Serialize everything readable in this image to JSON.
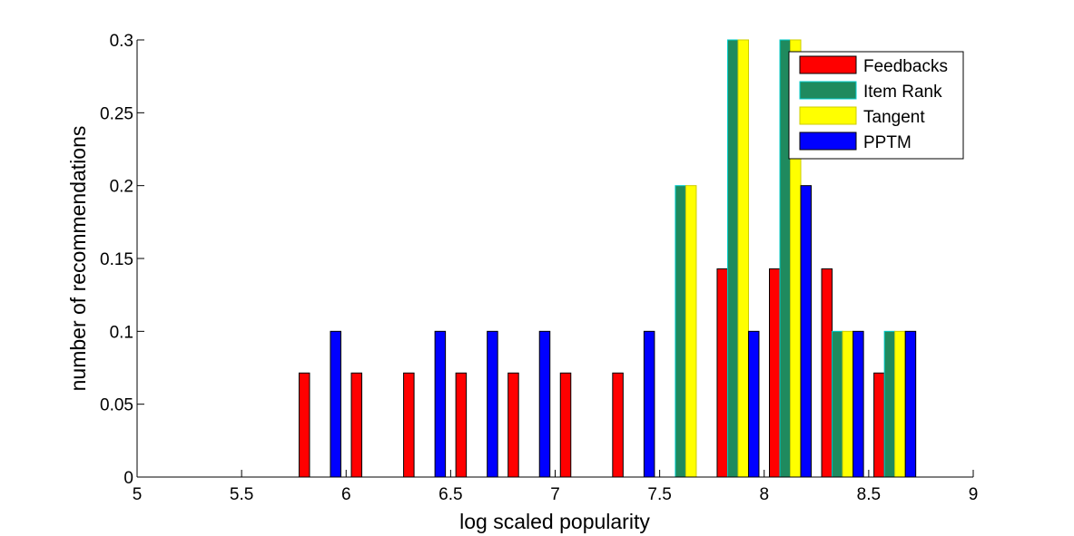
{
  "chart_data": {
    "type": "bar",
    "xlabel": "log scaled popularity",
    "ylabel": "number of recommendations",
    "xlim": [
      5,
      9
    ],
    "ylim": [
      0,
      0.3
    ],
    "x_ticks": [
      "5",
      "5.5",
      "6",
      "6.5",
      "7",
      "7.5",
      "8",
      "8.5",
      "9"
    ],
    "y_ticks": [
      "0",
      "0.05",
      "0.1",
      "0.15",
      "0.2",
      "0.25",
      "0.3"
    ],
    "grid": false,
    "legend_position": "top-right",
    "x": [
      5.125,
      5.375,
      5.625,
      5.875,
      6.125,
      6.375,
      6.625,
      6.875,
      7.125,
      7.375,
      7.625,
      7.875,
      8.125,
      8.375,
      8.625,
      8.875
    ],
    "series": [
      {
        "name": "Feedbacks",
        "color": "#ff0000",
        "edge": "#000000",
        "values": [
          0,
          0,
          0,
          0.0714,
          0.0714,
          0.0714,
          0.0714,
          0.0714,
          0.0714,
          0.0714,
          0,
          0.1429,
          0.1429,
          0.1429,
          0.0714,
          0
        ]
      },
      {
        "name": "Item Rank",
        "color": "#1f8a5e",
        "edge": "#00cccc",
        "values": [
          0,
          0,
          0,
          0,
          0,
          0,
          0,
          0,
          0,
          0,
          0.2,
          0.3,
          0.3,
          0.1,
          0.1,
          0
        ]
      },
      {
        "name": "Tangent",
        "color": "#ffff00",
        "edge": "#cccc00",
        "values": [
          0,
          0,
          0,
          0,
          0,
          0,
          0,
          0,
          0,
          0,
          0.2,
          0.3,
          0.3,
          0.1,
          0.1,
          0
        ]
      },
      {
        "name": "PPTM",
        "color": "#0000ff",
        "edge": "#000000",
        "values": [
          0,
          0,
          0,
          0.1,
          0,
          0.1,
          0.1,
          0.1,
          0,
          0.1,
          0,
          0.1,
          0.2,
          0.1,
          0.1,
          0
        ]
      }
    ]
  }
}
